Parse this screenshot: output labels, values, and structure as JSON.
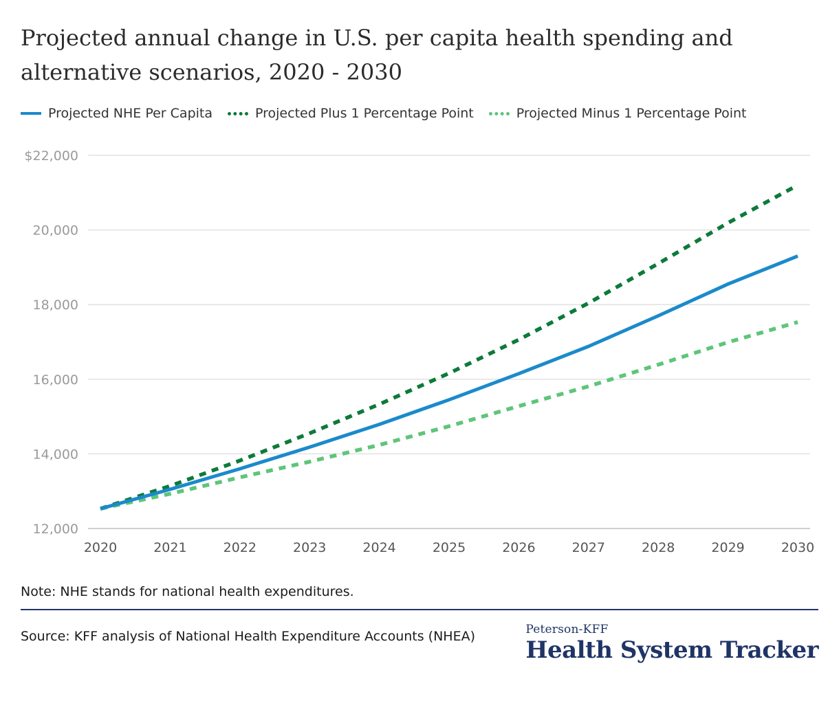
{
  "title": "Projected annual change in U.S. per capita health spending and alternative scenarios, 2020 - 2030",
  "note": "Note: NHE stands for national health expenditures.",
  "source": "Source: KFF analysis of National Health Expenditure Accounts (NHEA)",
  "brand": {
    "top": "Peterson-KFF",
    "main": "Health System Tracker"
  },
  "colors": {
    "nhe": "#1b8acb",
    "plus": "#0d7a3a",
    "minus": "#5ec579",
    "grid": "#e2e2e2",
    "axis": "#cfcfcf"
  },
  "chart_data": {
    "type": "line",
    "x": [
      2020,
      2021,
      2022,
      2023,
      2024,
      2025,
      2026,
      2027,
      2028,
      2029,
      2030
    ],
    "series": [
      {
        "name": "Projected NHE Per Capita",
        "style": "solid",
        "values": [
          12530,
          13050,
          13600,
          14180,
          14790,
          15450,
          16150,
          16880,
          17700,
          18550,
          19300
        ]
      },
      {
        "name": "Projected Plus 1 Percentage Point",
        "style": "dotted-dark",
        "values": [
          12530,
          13140,
          13820,
          14550,
          15330,
          16160,
          17060,
          18040,
          19100,
          20190,
          21200
        ]
      },
      {
        "name": "Projected Minus 1 Percentage Point",
        "style": "dotted-light",
        "values": [
          12530,
          12930,
          13370,
          13790,
          14240,
          14740,
          15280,
          15810,
          16390,
          16990,
          17530
        ]
      }
    ],
    "yticks": [
      12000,
      14000,
      16000,
      18000,
      20000,
      22000
    ],
    "ytick_labels": [
      "12,000",
      "14,000",
      "16,000",
      "18,000",
      "20,000",
      "$22,000"
    ],
    "ylim": [
      12000,
      22000
    ],
    "xlabel": "",
    "ylabel": "",
    "grid": true,
    "legend": "top"
  }
}
